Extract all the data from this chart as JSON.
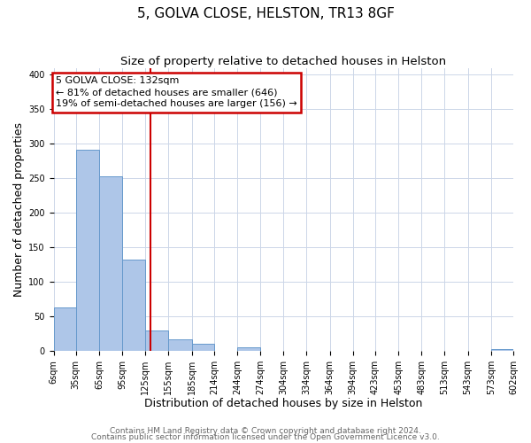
{
  "title": "5, GOLVA CLOSE, HELSTON, TR13 8GF",
  "subtitle": "Size of property relative to detached houses in Helston",
  "xlabel": "Distribution of detached houses by size in Helston",
  "ylabel": "Number of detached properties",
  "bin_edges": [
    6,
    35,
    65,
    95,
    125,
    155,
    185,
    214,
    244,
    274,
    304,
    334,
    364,
    394,
    423,
    453,
    483,
    513,
    543,
    573,
    602
  ],
  "bar_heights": [
    63,
    292,
    253,
    133,
    30,
    17,
    10,
    0,
    5,
    0,
    0,
    0,
    0,
    0,
    0,
    0,
    0,
    0,
    0,
    3
  ],
  "bar_color": "#aec6e8",
  "bar_edge_color": "#6699cc",
  "vline_x": 132,
  "vline_color": "#cc0000",
  "annotation_title": "5 GOLVA CLOSE: 132sqm",
  "annotation_line1": "← 81% of detached houses are smaller (646)",
  "annotation_line2": "19% of semi-detached houses are larger (156) →",
  "annotation_box_color": "#cc0000",
  "ylim": [
    0,
    410
  ],
  "xlim": [
    6,
    602
  ],
  "tick_labels": [
    "6sqm",
    "35sqm",
    "65sqm",
    "95sqm",
    "125sqm",
    "155sqm",
    "185sqm",
    "214sqm",
    "244sqm",
    "274sqm",
    "304sqm",
    "334sqm",
    "364sqm",
    "394sqm",
    "423sqm",
    "453sqm",
    "483sqm",
    "513sqm",
    "543sqm",
    "573sqm",
    "602sqm"
  ],
  "footer1": "Contains HM Land Registry data © Crown copyright and database right 2024.",
  "footer2": "Contains public sector information licensed under the Open Government Licence v3.0.",
  "background_color": "#ffffff",
  "grid_color": "#ccd6e8",
  "title_fontsize": 11,
  "subtitle_fontsize": 9.5,
  "axis_label_fontsize": 9,
  "tick_fontsize": 7,
  "footer_fontsize": 6.5,
  "annotation_fontsize": 8
}
